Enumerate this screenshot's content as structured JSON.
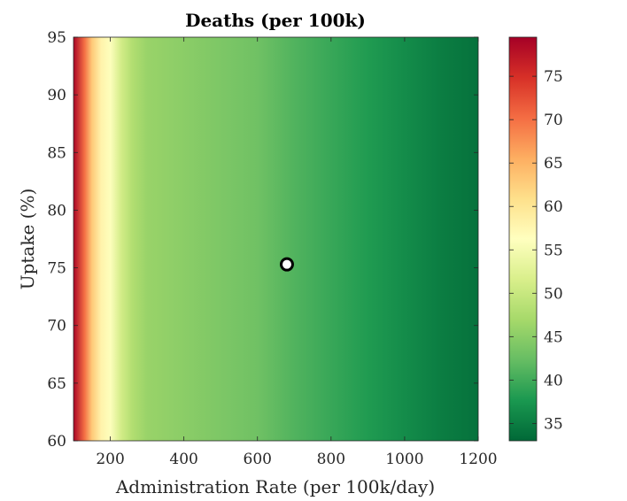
{
  "chart_data": {
    "type": "heatmap",
    "title": "Deaths (per 100k)",
    "xlabel": "Administration Rate (per 100k/day)",
    "ylabel": "Uptake (%)",
    "xlim": [
      100,
      1200
    ],
    "ylim": [
      60,
      95
    ],
    "x_ticks": [
      200,
      400,
      600,
      800,
      1000,
      1200
    ],
    "y_ticks": [
      60,
      65,
      70,
      75,
      80,
      85,
      90,
      95
    ],
    "colorbar": {
      "range": [
        33,
        79.5
      ],
      "ticks": [
        35,
        40,
        45,
        50,
        55,
        60,
        65,
        70,
        75
      ],
      "colormap": [
        "#006837",
        "#1a9850",
        "#66bd63",
        "#a6d96a",
        "#d9ef8b",
        "#ffffbf",
        "#fee08b",
        "#fdae61",
        "#f46d43",
        "#d73027",
        "#a50026"
      ]
    },
    "value_profile_by_x": {
      "x": [
        100,
        130,
        150,
        175,
        200,
        230,
        260,
        300,
        400,
        500,
        600,
        700,
        800,
        900,
        1000,
        1100,
        1200
      ],
      "deaths": [
        79,
        70,
        63,
        58,
        56,
        51,
        48,
        46,
        45,
        44,
        43,
        41,
        39.5,
        38,
        36.5,
        35,
        34
      ]
    },
    "marker": {
      "x": 680,
      "y": 75.3,
      "shape": "circle",
      "fill": "#ffffff",
      "edge": "#000000"
    },
    "grid": false
  }
}
